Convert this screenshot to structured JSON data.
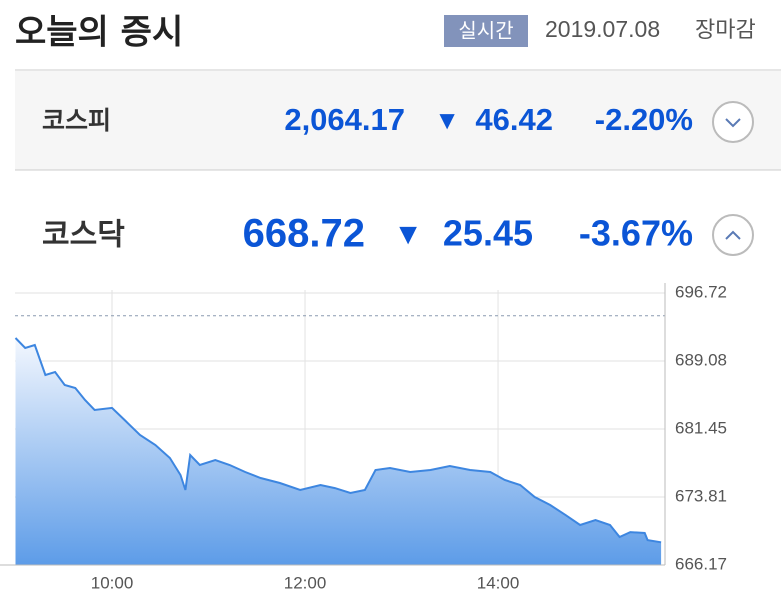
{
  "header": {
    "title": "오늘의 증시",
    "badge": "실시간",
    "date": "2019.07.08",
    "status": "장마감"
  },
  "indices": [
    {
      "name": "코스피",
      "value": "2,064.17",
      "direction": "▼",
      "change": "46.42",
      "percent": "-2.20%"
    },
    {
      "name": "코스닥",
      "value": "668.72",
      "direction": "▼",
      "change": "25.45",
      "percent": "-3.67%"
    }
  ],
  "chart_data": {
    "type": "area",
    "color": "#3d86e0",
    "x": [
      9.0,
      9.1,
      9.2,
      9.31,
      9.41,
      9.51,
      9.62,
      9.72,
      9.82,
      10.0,
      10.13,
      10.29,
      10.45,
      10.6,
      10.71,
      10.76,
      10.81,
      10.91,
      11.07,
      11.22,
      11.38,
      11.54,
      11.74,
      11.95,
      12.16,
      12.31,
      12.47,
      12.62,
      12.73,
      12.88,
      13.09,
      13.3,
      13.5,
      13.71,
      13.92,
      14.07,
      14.23,
      14.38,
      14.54,
      14.7,
      14.85,
      15.01,
      15.16,
      15.26,
      15.37,
      15.52,
      15.55,
      15.69
    ],
    "values": [
      691.67,
      690.54,
      690.88,
      687.51,
      687.85,
      686.39,
      686.05,
      684.7,
      683.58,
      683.81,
      682.46,
      680.77,
      679.65,
      678.19,
      676.28,
      674.59,
      678.52,
      677.4,
      677.96,
      677.4,
      676.61,
      675.94,
      675.38,
      674.59,
      675.15,
      674.81,
      674.26,
      674.59,
      676.84,
      677.06,
      676.61,
      676.84,
      677.29,
      676.84,
      676.61,
      675.72,
      675.15,
      673.81,
      672.91,
      671.78,
      670.66,
      671.22,
      670.66,
      669.31,
      669.87,
      669.76,
      668.97,
      668.72
    ],
    "reference_line": 694.17,
    "xlim": [
      9,
      15.73
    ],
    "xticks": [
      {
        "value": 10,
        "label": "10:00"
      },
      {
        "value": 12,
        "label": "12:00"
      },
      {
        "value": 14,
        "label": "14:00"
      }
    ],
    "ylim": [
      666.17,
      696.72
    ],
    "yticks": [
      666.17,
      673.81,
      681.45,
      689.08,
      696.72
    ],
    "grid": true
  }
}
